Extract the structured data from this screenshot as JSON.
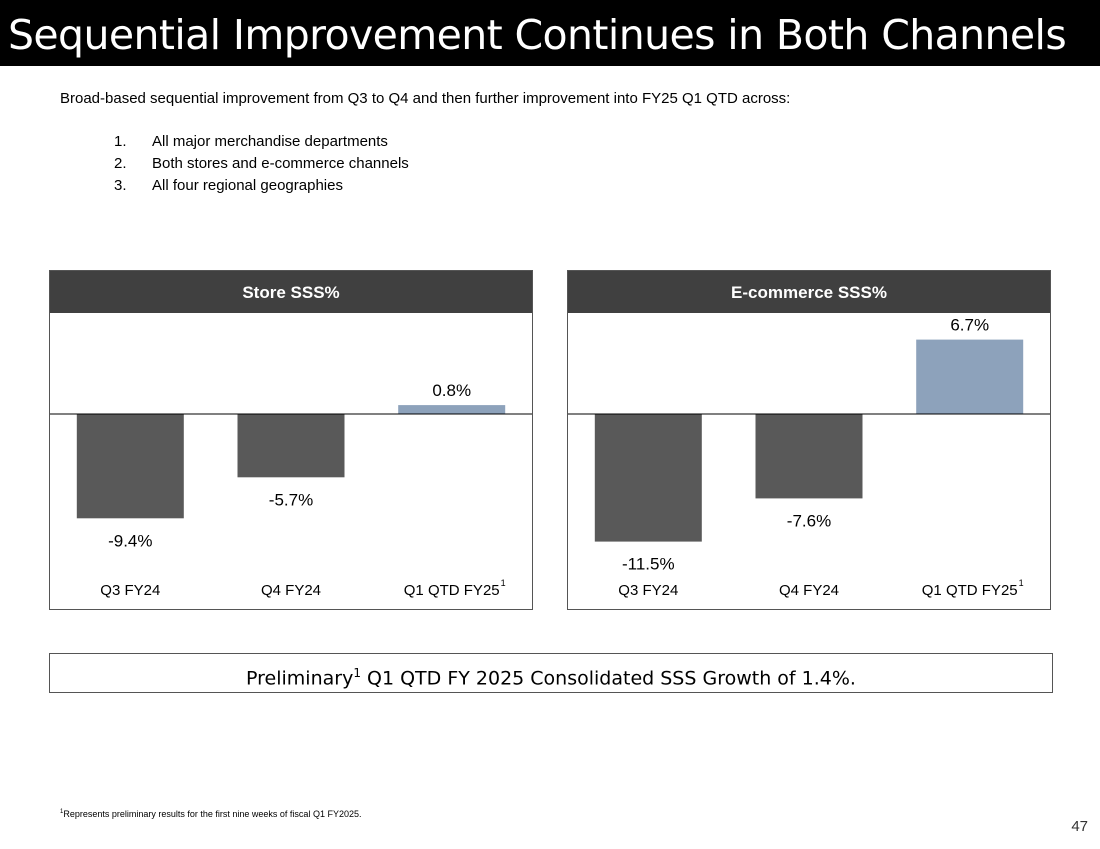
{
  "title": "Sequential Improvement Continues in Both Channels",
  "intro": "Broad-based sequential improvement from Q3 to Q4 and then further improvement into FY25 Q1 QTD across:",
  "points": [
    {
      "num": "1.",
      "text": "All major merchandise departments"
    },
    {
      "num": "2.",
      "text": "Both stores and e-commerce channels"
    },
    {
      "num": "3.",
      "text": "All four regional geographies"
    }
  ],
  "colors": {
    "negative_bar": "#595959",
    "positive_bar": "#8da2bb",
    "header_bg": "#404040"
  },
  "chart_data": [
    {
      "type": "bar",
      "title": "Store SSS%",
      "categories": [
        "Q3 FY24",
        "Q4 FY24",
        "Q1 QTD FY25"
      ],
      "category_superscripts": [
        "",
        "",
        "1"
      ],
      "values": [
        -9.4,
        -5.7,
        0.8
      ],
      "labels": [
        "-9.4%",
        "-5.7%",
        "0.8%"
      ],
      "ylim": [
        -11.5,
        8.2
      ]
    },
    {
      "type": "bar",
      "title": "E-commerce SSS%",
      "categories": [
        "Q3 FY24",
        "Q4 FY24",
        "Q1 QTD FY25"
      ],
      "category_superscripts": [
        "",
        "",
        "1"
      ],
      "values": [
        -11.5,
        -7.6,
        6.7
      ],
      "labels": [
        "-11.5%",
        "-7.6%",
        "6.7%"
      ],
      "ylim": [
        -11.5,
        8.2
      ]
    }
  ],
  "summary": {
    "prefix": "Preliminary",
    "sup": "1",
    "rest": " Q1 QTD FY 2025 Consolidated SSS Growth of 1.4%."
  },
  "footnote": {
    "sup": "1",
    "text": "Represents preliminary results for the first nine weeks of fiscal Q1 FY2025."
  },
  "page_number": "47"
}
